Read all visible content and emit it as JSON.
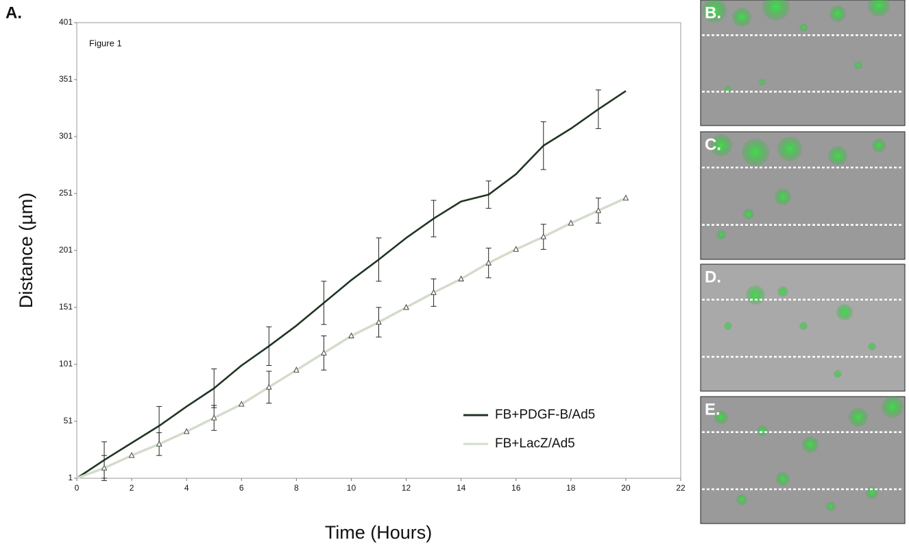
{
  "chart_data": {
    "type": "line",
    "panel_label": "A.",
    "title": "Figure 1",
    "x_label": "Time (Hours)",
    "y_label": "Distance (µm)",
    "x": [
      0,
      1,
      2,
      3,
      4,
      5,
      6,
      7,
      8,
      9,
      10,
      11,
      12,
      13,
      14,
      15,
      16,
      17,
      18,
      19,
      20
    ],
    "series": [
      {
        "name": "FB+PDGF-B/Ad5",
        "color": "#1e3522",
        "values": [
          1,
          17,
          32,
          47,
          64,
          80,
          100,
          117,
          135,
          155,
          175,
          193,
          212,
          229,
          244,
          250,
          268,
          293,
          308,
          325,
          341
        ],
        "errors": [
          null,
          16,
          null,
          17,
          null,
          17,
          null,
          17,
          null,
          19,
          null,
          19,
          null,
          16,
          null,
          12,
          null,
          21,
          null,
          17,
          null
        ]
      },
      {
        "name": "FB+LacZ/Ad5",
        "color": "#d3dccb",
        "marker": "triangle",
        "values": [
          1,
          10,
          21,
          31,
          42,
          54,
          66,
          81,
          96,
          111,
          126,
          138,
          151,
          164,
          176,
          190,
          202,
          213,
          225,
          236,
          247
        ],
        "errors": [
          null,
          11,
          null,
          10,
          null,
          11,
          null,
          14,
          null,
          15,
          null,
          13,
          null,
          12,
          null,
          13,
          null,
          11,
          null,
          11,
          null
        ]
      }
    ],
    "xlim": [
      0,
      22
    ],
    "xticks": [
      0,
      2,
      4,
      6,
      8,
      10,
      12,
      14,
      16,
      18,
      20,
      22
    ],
    "ylim": [
      1,
      401
    ],
    "yticks": [
      1,
      51,
      101,
      151,
      201,
      251,
      301,
      351,
      401
    ],
    "image_panels": [
      "B.",
      "C.",
      "D.",
      "E."
    ]
  }
}
